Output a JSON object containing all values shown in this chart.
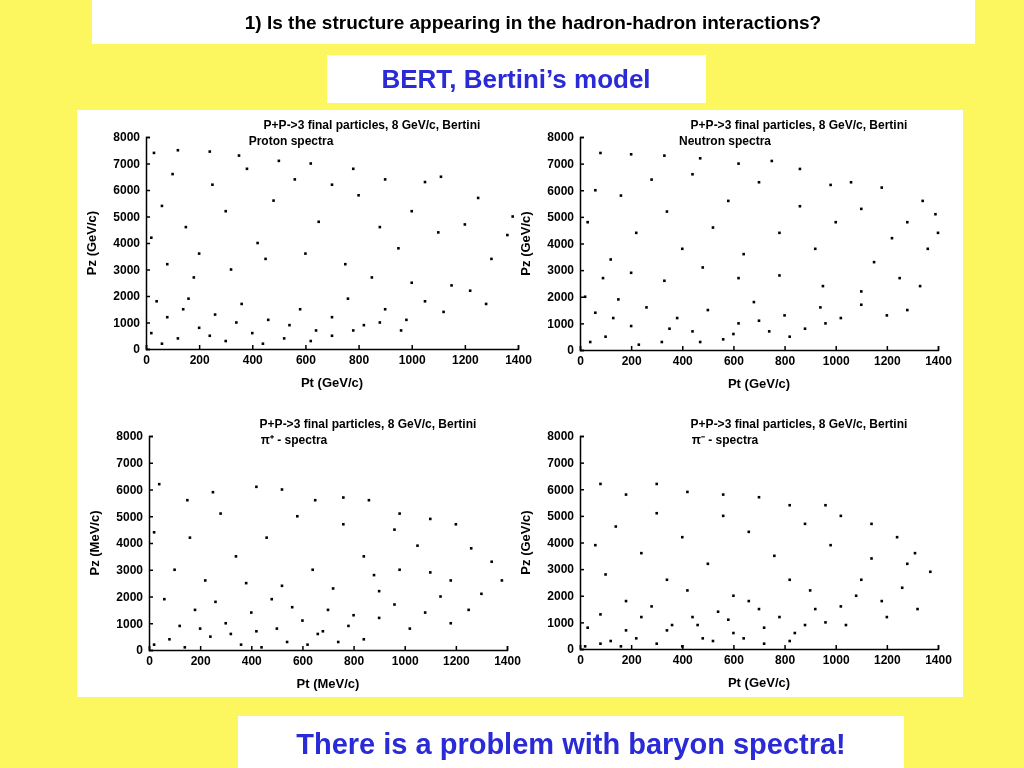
{
  "chart_data": [
    {
      "type": "scatter",
      "title": "P+P->3 final particles, 8 GeV/c, Bertini",
      "subtitle": "Proton spectra",
      "xlabel": "Pt (GeV/c)",
      "ylabel": "Pz (GeV/c)",
      "annotations": [
        "1) Is the structure appearing in the hadron-hadron interactions?",
        "BERT, Bertini’s model",
        "There is a problem with baryon spectra!"
      ],
      "xlim": [
        0,
        1400
      ],
      "ylim": [
        0,
        8000
      ],
      "xticks": [
        0,
        200,
        400,
        600,
        800,
        1000,
        1200,
        1400
      ],
      "yticks": [
        0,
        1000,
        2000,
        3000,
        4000,
        5000,
        6000,
        7000,
        8000
      ],
      "marker": "square",
      "grid": false,
      "series": [
        {
          "color": "#000000",
          "x": [
            30,
            120,
            240,
            350,
            500,
            620,
            780,
            900,
            1050,
            1110,
            1250,
            1380,
            1360,
            1300,
            1200,
            1100,
            1000,
            950,
            880,
            800,
            700,
            650,
            560,
            480,
            420,
            380,
            300,
            250,
            200,
            150,
            100,
            60,
            20,
            80,
            180,
            320,
            450,
            600,
            750,
            850,
            1000,
            1150,
            1280,
            1220,
            1120,
            1050,
            980,
            900,
            820,
            760,
            700,
            640,
            580,
            520,
            460,
            400,
            360,
            300,
            260,
            200,
            160,
            120,
            80,
            40,
            20,
            60,
            140,
            240,
            340,
            440,
            540,
            620,
            700,
            780,
            880,
            960
          ],
          "values": [
            7400,
            7500,
            7450,
            7300,
            7100,
            7000,
            6800,
            6400,
            6300,
            6500,
            5700,
            5000,
            4300,
            3400,
            4700,
            4400,
            5200,
            3800,
            4600,
            5800,
            6200,
            4800,
            6400,
            5600,
            4000,
            6800,
            5200,
            6200,
            3600,
            4600,
            6600,
            5400,
            4200,
            3200,
            2700,
            3000,
            3400,
            3600,
            3200,
            2700,
            2500,
            2400,
            1700,
            2200,
            1400,
            1800,
            1100,
            1500,
            900,
            1900,
            1200,
            700,
            1500,
            400,
            1100,
            600,
            1700,
            300,
            1300,
            800,
            1900,
            400,
            1200,
            1800,
            600,
            200,
            1500,
            500,
            1000,
            200,
            900,
            300,
            500,
            700,
            1000,
            700
          ]
        }
      ]
    },
    {
      "type": "scatter",
      "title": "P+P->3 final particles, 8 GeV/c, Bertini",
      "subtitle": "Neutron spectra",
      "xlabel": "Pt (GeV/c)",
      "ylabel": "Pz (GeV/c)",
      "xlim": [
        0,
        1400
      ],
      "ylim": [
        0,
        8000
      ],
      "xticks": [
        0,
        200,
        400,
        600,
        800,
        1000,
        1200,
        1400
      ],
      "yticks": [
        0,
        1000,
        2000,
        3000,
        4000,
        5000,
        6000,
        7000,
        8000
      ],
      "marker": "square",
      "grid": false,
      "series": [
        {
          "color": "#000000",
          "x": [
            80,
            200,
            330,
            470,
            620,
            750,
            860,
            980,
            1060,
            1180,
            1340,
            1390,
            1400,
            1360,
            1280,
            1220,
            1150,
            1100,
            1000,
            920,
            860,
            780,
            700,
            640,
            580,
            520,
            440,
            400,
            340,
            280,
            220,
            160,
            120,
            60,
            30,
            90,
            200,
            330,
            480,
            620,
            780,
            950,
            1100,
            1250,
            1330,
            1280,
            1200,
            1100,
            1020,
            940,
            880,
            800,
            740,
            680,
            620,
            560,
            500,
            440,
            380,
            320,
            260,
            200,
            150,
            100,
            60,
            20,
            40,
            130,
            230,
            350,
            470,
            600,
            700,
            820,
            960
          ],
          "values": [
            7400,
            7350,
            7300,
            7200,
            7000,
            7100,
            6800,
            6200,
            6300,
            6100,
            5600,
            5100,
            4400,
            3800,
            4800,
            4200,
            3300,
            5300,
            4800,
            3800,
            5400,
            4400,
            6300,
            3600,
            5600,
            4600,
            6600,
            3800,
            5200,
            6400,
            4400,
            5800,
            3400,
            6000,
            4800,
            2700,
            2900,
            2600,
            3100,
            2700,
            2800,
            2400,
            2200,
            2700,
            2400,
            1500,
            1300,
            1700,
            1200,
            1600,
            800,
            1300,
            700,
            1800,
            1000,
            400,
            1500,
            700,
            1200,
            300,
            1600,
            900,
            1900,
            500,
            1400,
            2000,
            300,
            1200,
            200,
            800,
            300,
            600,
            1100,
            500,
            1000
          ]
        }
      ]
    },
    {
      "type": "scatter",
      "title": "P+P->3 final particles, 8 GeV/c, Bertini",
      "subtitle": "π⁺ - spectra",
      "xlabel": "Pt (MeV/c)",
      "ylabel": "Pz (MeV/c)",
      "xlim": [
        0,
        1400
      ],
      "ylim": [
        0,
        8000
      ],
      "xticks": [
        0,
        200,
        400,
        600,
        800,
        1000,
        1200,
        1400
      ],
      "yticks": [
        0,
        1000,
        2000,
        3000,
        4000,
        5000,
        6000,
        7000,
        8000
      ],
      "marker": "square",
      "grid": false,
      "series": [
        {
          "color": "#000000",
          "x": [
            40,
            150,
            250,
            420,
            520,
            650,
            760,
            860,
            980,
            1100,
            1200,
            1260,
            1340,
            1380,
            1300,
            1250,
            1180,
            1100,
            1050,
            960,
            900,
            840,
            760,
            700,
            640,
            580,
            520,
            460,
            400,
            340,
            280,
            220,
            160,
            100,
            20,
            60,
            120,
            180,
            240,
            300,
            360,
            420,
            480,
            540,
            600,
            660,
            720,
            780,
            840,
            900,
            960,
            1020,
            1080,
            1140,
            20,
            80,
            140,
            200,
            260,
            320,
            380,
            440,
            500,
            560,
            620,
            680,
            740,
            800,
            880,
            980,
            1180
          ],
          "values": [
            6200,
            5600,
            5900,
            6100,
            6000,
            5600,
            5700,
            5600,
            5100,
            4900,
            4700,
            3800,
            3300,
            2600,
            2100,
            1500,
            1000,
            2900,
            3900,
            4500,
            2200,
            3500,
            4700,
            1500,
            3000,
            5000,
            2400,
            4200,
            1400,
            3500,
            5100,
            2600,
            4200,
            3000,
            4400,
            1900,
            900,
            1500,
            500,
            1000,
            200,
            700,
            1900,
            300,
            1100,
            600,
            2300,
            900,
            400,
            1200,
            1700,
            800,
            1400,
            2000,
            200,
            400,
            100,
            800,
            1800,
            600,
            2500,
            100,
            800,
            1600,
            200,
            700,
            300,
            1300,
            2800,
            3000,
            2600
          ]
        }
      ]
    },
    {
      "type": "scatter",
      "title": "P+P->3 final particles, 8 GeV/c, Bertini",
      "subtitle": "π⁻ - spectra",
      "xlabel": "Pt (GeV/c)",
      "ylabel": "Pz (GeV/c)",
      "xlim": [
        0,
        1400
      ],
      "ylim": [
        0,
        8000
      ],
      "xticks": [
        0,
        200,
        400,
        600,
        800,
        1000,
        1200,
        1400
      ],
      "yticks": [
        0,
        1000,
        2000,
        3000,
        4000,
        5000,
        6000,
        7000,
        8000
      ],
      "marker": "square",
      "grid": false,
      "series": [
        {
          "color": "#000000",
          "x": [
            80,
            180,
            300,
            420,
            560,
            700,
            820,
            960,
            1020,
            1140,
            1240,
            1310,
            1370,
            1320,
            1260,
            1200,
            1140,
            1080,
            1040,
            980,
            920,
            880,
            820,
            760,
            720,
            660,
            600,
            560,
            500,
            440,
            400,
            340,
            300,
            240,
            180,
            140,
            100,
            60,
            30,
            80,
            120,
            180,
            240,
            300,
            360,
            420,
            480,
            540,
            600,
            660,
            720,
            780,
            840,
            900,
            960,
            1020,
            1100,
            1180,
            1280,
            20,
            80,
            160,
            220,
            280,
            340,
            400,
            460,
            520,
            580,
            640,
            700,
            820,
            880
          ],
          "values": [
            6200,
            5800,
            6200,
            5900,
            5800,
            5700,
            5400,
            5400,
            5000,
            4700,
            4200,
            3600,
            2900,
            1500,
            2300,
            1200,
            3400,
            2000,
            900,
            3900,
            1500,
            4700,
            2600,
            3500,
            800,
            4400,
            2000,
            5000,
            3200,
            1200,
            4200,
            2600,
            5100,
            3600,
            1800,
            4600,
            2800,
            3900,
            800,
            1300,
            300,
            700,
            1200,
            200,
            900,
            2200,
            400,
            1400,
            600,
            1800,
            200,
            1200,
            600,
            2200,
            1000,
            1600,
            2600,
            1800,
            3200,
            100,
            200,
            100,
            400,
            1600,
            700,
            100,
            900,
            300,
            1100,
            400,
            1500,
            300,
            900
          ]
        }
      ]
    }
  ]
}
